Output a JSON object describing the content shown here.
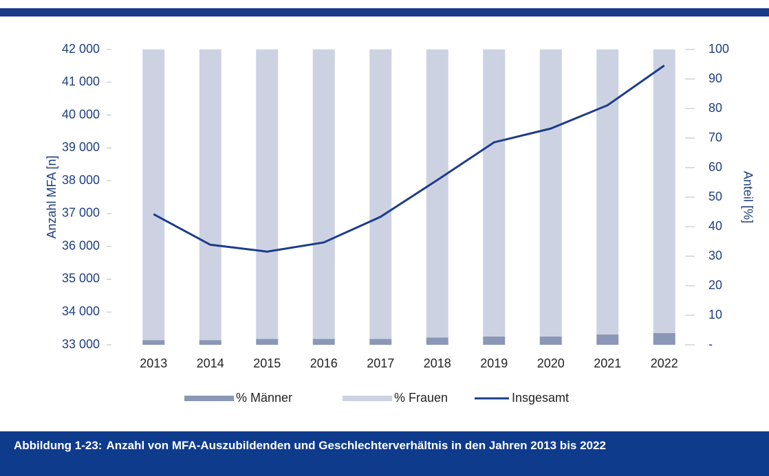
{
  "chart_data": {
    "type": "bar",
    "caption_label": "Abbildung 1-23:",
    "caption_text": "Anzahl von MFA-Auszubildenden und Geschlechterverhältnis in den Jahren 2013 bis 2022",
    "y_label": "Anzahl MFA [n]",
    "y2_label": "Anteil [%]",
    "categories": [
      "2013",
      "2014",
      "2015",
      "2016",
      "2017",
      "2018",
      "2019",
      "2020",
      "2021",
      "2022"
    ],
    "series": [
      {
        "name": "% Männer",
        "type": "bar",
        "axis": "y2",
        "color": "#8b97b6",
        "values": [
          1.6,
          1.6,
          2,
          2,
          2,
          2.5,
          2.8,
          2.8,
          3.5,
          4
        ]
      },
      {
        "name": "% Frauen",
        "type": "bar",
        "axis": "y2",
        "color": "#ccd2e2",
        "values": [
          98.4,
          98.4,
          98,
          98,
          98,
          97.5,
          97.2,
          97.2,
          96.5,
          96
        ]
      },
      {
        "name": "Insgesamt",
        "type": "line",
        "color": "#1c3c8a",
        "values": [
          36980,
          36050,
          35840,
          36120,
          36900,
          38020,
          39170,
          39590,
          40300,
          41510
        ]
      }
    ],
    "ylim": [
      33000,
      42000
    ],
    "yticks": [
      {
        "value": 33000,
        "label": "33 000"
      },
      {
        "value": 34000,
        "label": "34 000"
      },
      {
        "value": 35000,
        "label": "35 000"
      },
      {
        "value": 36000,
        "label": "36 000"
      },
      {
        "value": 37000,
        "label": "37 000"
      },
      {
        "value": 38000,
        "label": "38 000"
      },
      {
        "value": 39000,
        "label": "39 000"
      },
      {
        "value": 40000,
        "label": "40 000"
      },
      {
        "value": 41000,
        "label": "41 000"
      },
      {
        "value": 42000,
        "label": "42 000"
      }
    ],
    "y2lim": [
      0,
      100
    ],
    "y2ticks": [
      {
        "value": 0,
        "label": "-"
      },
      10,
      20,
      30,
      40,
      50,
      60,
      70,
      80,
      90,
      100
    ],
    "grid": false
  }
}
